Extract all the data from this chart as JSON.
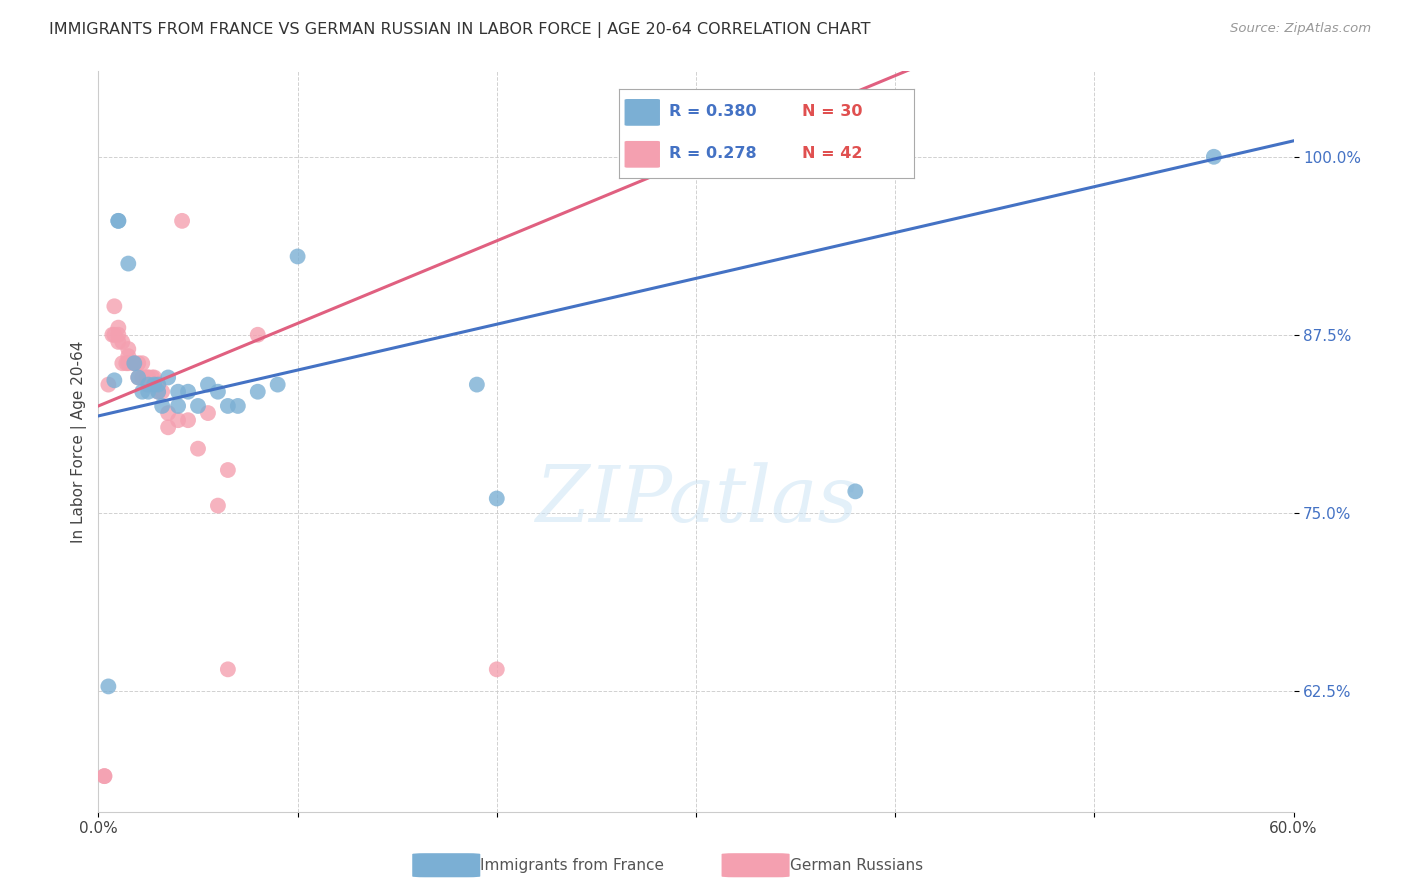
{
  "title": "IMMIGRANTS FROM FRANCE VS GERMAN RUSSIAN IN LABOR FORCE | AGE 20-64 CORRELATION CHART",
  "source": "Source: ZipAtlas.com",
  "ylabel": "In Labor Force | Age 20-64",
  "xlim": [
    0.0,
    0.6
  ],
  "ylim": [
    0.54,
    1.06
  ],
  "xticks": [
    0.0,
    0.1,
    0.2,
    0.3,
    0.4,
    0.5,
    0.6
  ],
  "xticklabels": [
    "0.0%",
    "",
    "",
    "",
    "",
    "",
    "60.0%"
  ],
  "yticks": [
    0.625,
    0.75,
    0.875,
    1.0
  ],
  "yticklabels": [
    "62.5%",
    "75.0%",
    "87.5%",
    "100.0%"
  ],
  "blue_color": "#7bafd4",
  "pink_color": "#f4a0b0",
  "blue_line_color": "#4472c4",
  "pink_line_color": "#e06080",
  "legend_r_blue": "R = 0.380",
  "legend_n_blue": "N = 30",
  "legend_r_pink": "R = 0.278",
  "legend_n_pink": "N = 42",
  "legend_label_blue": "Immigrants from France",
  "legend_label_pink": "German Russians",
  "watermark": "ZIPatlas",
  "blue_scatter_x": [
    0.005,
    0.008,
    0.01,
    0.01,
    0.015,
    0.018,
    0.02,
    0.022,
    0.025,
    0.025,
    0.028,
    0.03,
    0.03,
    0.032,
    0.035,
    0.04,
    0.04,
    0.045,
    0.05,
    0.055,
    0.06,
    0.065,
    0.07,
    0.08,
    0.09,
    0.1,
    0.19,
    0.2,
    0.38,
    0.56
  ],
  "blue_scatter_y": [
    0.628,
    0.843,
    0.955,
    0.955,
    0.925,
    0.855,
    0.845,
    0.835,
    0.835,
    0.84,
    0.84,
    0.84,
    0.835,
    0.825,
    0.845,
    0.835,
    0.825,
    0.835,
    0.825,
    0.84,
    0.835,
    0.825,
    0.825,
    0.835,
    0.84,
    0.93,
    0.84,
    0.76,
    0.765,
    1.0
  ],
  "pink_scatter_x": [
    0.003,
    0.003,
    0.005,
    0.007,
    0.008,
    0.008,
    0.01,
    0.01,
    0.01,
    0.012,
    0.012,
    0.014,
    0.015,
    0.015,
    0.015,
    0.018,
    0.018,
    0.02,
    0.02,
    0.022,
    0.022,
    0.024,
    0.025,
    0.025,
    0.027,
    0.028,
    0.028,
    0.03,
    0.03,
    0.032,
    0.035,
    0.035,
    0.04,
    0.042,
    0.045,
    0.05,
    0.055,
    0.06,
    0.065,
    0.065,
    0.08,
    0.2
  ],
  "pink_scatter_y": [
    0.565,
    0.565,
    0.84,
    0.875,
    0.875,
    0.895,
    0.88,
    0.875,
    0.87,
    0.855,
    0.87,
    0.855,
    0.855,
    0.865,
    0.86,
    0.855,
    0.855,
    0.855,
    0.845,
    0.845,
    0.855,
    0.845,
    0.845,
    0.845,
    0.845,
    0.84,
    0.845,
    0.84,
    0.835,
    0.835,
    0.81,
    0.82,
    0.815,
    0.955,
    0.815,
    0.795,
    0.82,
    0.755,
    0.78,
    0.64,
    0.875,
    0.64
  ],
  "blue_intercept": 0.818,
  "blue_slope": 0.322,
  "pink_intercept": 0.825,
  "pink_slope": 0.58
}
